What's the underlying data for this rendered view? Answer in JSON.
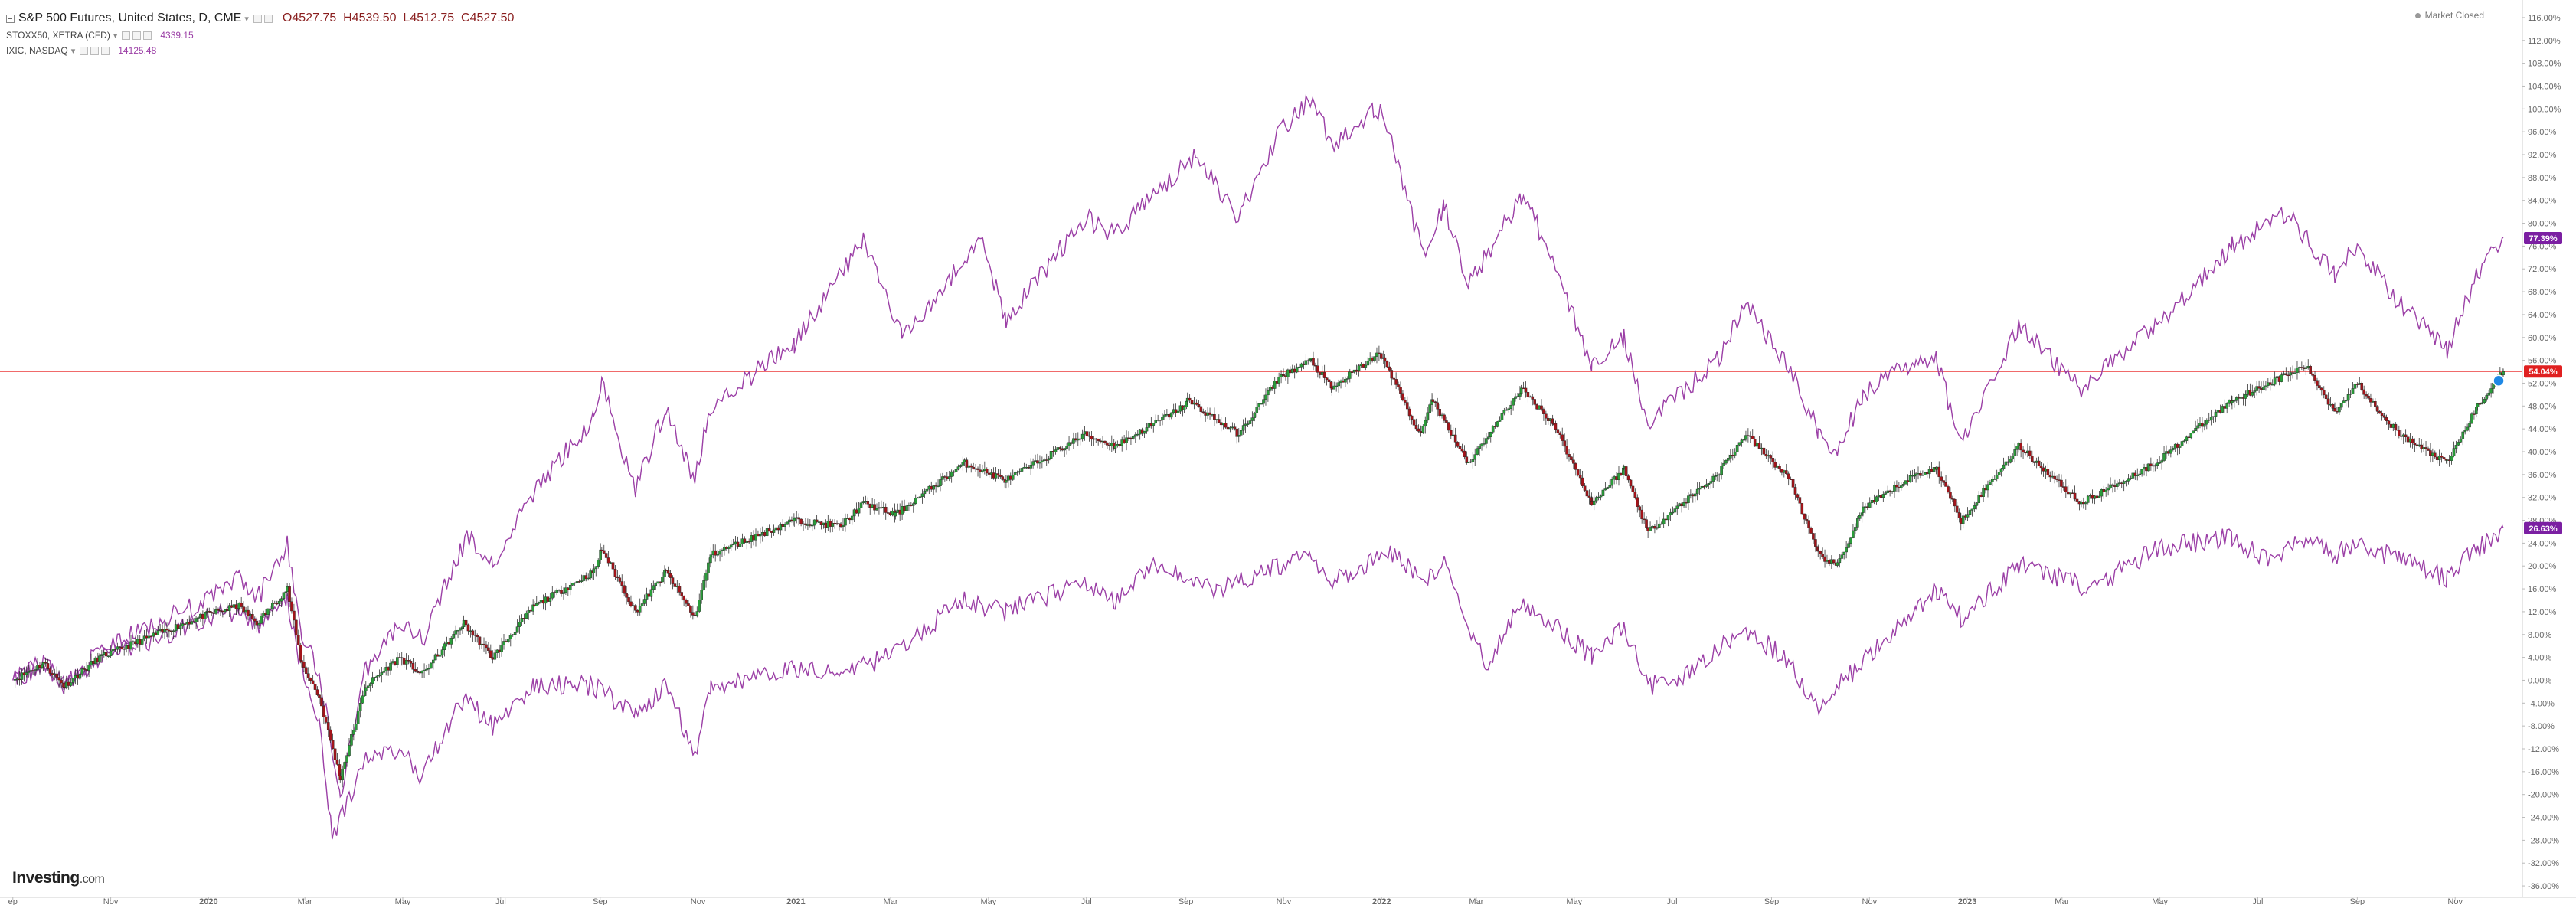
{
  "header": {
    "main_symbol": "S&P 500 Futures, United States, D, CME",
    "open_label": "O",
    "open_value": "4527.75",
    "high_label": "H",
    "high_value": "4539.50",
    "low_label": "L",
    "low_value": "4512.75",
    "close_label": "C",
    "close_value": "4527.50",
    "compare1_symbol": "STOXX50, XETRA (CFD)",
    "compare1_value": "4339.15",
    "compare2_symbol": "IXIC, NASDAQ",
    "compare2_value": "14125.48",
    "market_status": "Market Closed",
    "caret_icon": "chevron-down-icon"
  },
  "brand": {
    "name": "Investing",
    "suffix": ".com"
  },
  "colors": {
    "background": "#ffffff",
    "candle_up": "#2a9d3a",
    "candle_down": "#a3141a",
    "compare_line": "#9b3fa6",
    "last_price_line": "#f06a6a",
    "badge_red": "#e02020",
    "badge_purple": "#7b1fa2",
    "grid": "#eeeeee",
    "axis_text": "#666666"
  },
  "chart_data": {
    "type": "line",
    "title": "S&P 500 Futures, United States, D, CME",
    "ylabel": "",
    "ylim": [
      -38,
      118
    ],
    "y_scale": "percent change",
    "y_ticks": [
      "116.00%",
      "112.00%",
      "108.00%",
      "104.00%",
      "100.00%",
      "96.00%",
      "92.00%",
      "88.00%",
      "84.00%",
      "80.00%",
      "76.00%",
      "72.00%",
      "68.00%",
      "64.00%",
      "60.00%",
      "56.00%",
      "52.00%",
      "48.00%",
      "44.00%",
      "40.00%",
      "36.00%",
      "32.00%",
      "28.00%",
      "24.00%",
      "20.00%",
      "16.00%",
      "12.00%",
      "8.00%",
      "4.00%",
      "0.00%",
      "-4.00%",
      "-8.00%",
      "-12.00%",
      "-16.00%",
      "-20.00%",
      "-24.00%",
      "-28.00%",
      "-32.00%",
      "-36.00%"
    ],
    "x_ticks": [
      {
        "date": "2019-09-01",
        "label": "ep"
      },
      {
        "date": "2019-11-01",
        "label": "Nov"
      },
      {
        "date": "2020-01-01",
        "label": "2020"
      },
      {
        "date": "2020-03-01",
        "label": "Mar"
      },
      {
        "date": "2020-05-01",
        "label": "May"
      },
      {
        "date": "2020-07-01",
        "label": "Jul"
      },
      {
        "date": "2020-09-01",
        "label": "Sep"
      },
      {
        "date": "2020-11-01",
        "label": "Nov"
      },
      {
        "date": "2021-01-01",
        "label": "2021"
      },
      {
        "date": "2021-03-01",
        "label": "Mar"
      },
      {
        "date": "2021-05-01",
        "label": "May"
      },
      {
        "date": "2021-07-01",
        "label": "Jul"
      },
      {
        "date": "2021-09-01",
        "label": "Sep"
      },
      {
        "date": "2021-11-01",
        "label": "Nov"
      },
      {
        "date": "2022-01-01",
        "label": "2022"
      },
      {
        "date": "2022-03-01",
        "label": "Mar"
      },
      {
        "date": "2022-05-01",
        "label": "May"
      },
      {
        "date": "2022-07-01",
        "label": "Jul"
      },
      {
        "date": "2022-09-01",
        "label": "Sep"
      },
      {
        "date": "2022-11-01",
        "label": "Nov"
      },
      {
        "date": "2023-01-01",
        "label": "2023"
      },
      {
        "date": "2023-03-01",
        "label": "Mar"
      },
      {
        "date": "2023-05-01",
        "label": "May"
      },
      {
        "date": "2023-07-01",
        "label": "Jul"
      },
      {
        "date": "2023-09-01",
        "label": "Sep"
      },
      {
        "date": "2023-11-01",
        "label": "Nov"
      }
    ],
    "grid": false,
    "legend": "top-left",
    "last_price_line_value": 54.04,
    "series": [
      {
        "name": "S&P 500 Futures, United States, D, CME",
        "style": "candlestick",
        "last_label": "54.04%",
        "points": [
          [
            "2019-09-01",
            0
          ],
          [
            "2019-09-20",
            3
          ],
          [
            "2019-10-03",
            -1
          ],
          [
            "2019-10-25",
            4
          ],
          [
            "2019-11-29",
            8
          ],
          [
            "2019-12-31",
            11.5
          ],
          [
            "2020-01-20",
            13
          ],
          [
            "2020-01-31",
            10
          ],
          [
            "2020-02-19",
            16
          ],
          [
            "2020-02-28",
            3
          ],
          [
            "2020-03-10",
            -3
          ],
          [
            "2020-03-23",
            -17
          ],
          [
            "2020-04-08",
            -1
          ],
          [
            "2020-04-29",
            4
          ],
          [
            "2020-05-13",
            1
          ],
          [
            "2020-06-08",
            10
          ],
          [
            "2020-06-26",
            4
          ],
          [
            "2020-07-22",
            13
          ],
          [
            "2020-08-28",
            19
          ],
          [
            "2020-09-02",
            23
          ],
          [
            "2020-09-23",
            12
          ],
          [
            "2020-10-12",
            19
          ],
          [
            "2020-10-30",
            11
          ],
          [
            "2020-11-09",
            22
          ],
          [
            "2020-12-31",
            28
          ],
          [
            "2021-01-29",
            27
          ],
          [
            "2021-02-12",
            31
          ],
          [
            "2021-03-04",
            29
          ],
          [
            "2021-04-16",
            38
          ],
          [
            "2021-05-12",
            35
          ],
          [
            "2021-06-30",
            43
          ],
          [
            "2021-07-19",
            41
          ],
          [
            "2021-08-31",
            48
          ],
          [
            "2021-09-02",
            49
          ],
          [
            "2021-10-04",
            43
          ],
          [
            "2021-10-29",
            53
          ],
          [
            "2021-11-18",
            56
          ],
          [
            "2021-12-01",
            51
          ],
          [
            "2021-12-29",
            57
          ],
          [
            "2022-01-03",
            56
          ],
          [
            "2022-01-24",
            43
          ],
          [
            "2022-02-02",
            49
          ],
          [
            "2022-02-24",
            38
          ],
          [
            "2022-03-29",
            51
          ],
          [
            "2022-04-18",
            45
          ],
          [
            "2022-05-12",
            31
          ],
          [
            "2022-06-01",
            37
          ],
          [
            "2022-06-16",
            26
          ],
          [
            "2022-07-29",
            36
          ],
          [
            "2022-08-16",
            43
          ],
          [
            "2022-09-13",
            35
          ],
          [
            "2022-09-30",
            22
          ],
          [
            "2022-10-12",
            20
          ],
          [
            "2022-10-28",
            30
          ],
          [
            "2022-11-30",
            36
          ],
          [
            "2022-12-13",
            37
          ],
          [
            "2022-12-28",
            28
          ],
          [
            "2023-02-02",
            41
          ],
          [
            "2023-03-13",
            31
          ],
          [
            "2023-04-28",
            38
          ],
          [
            "2023-06-15",
            49
          ],
          [
            "2023-07-31",
            55
          ],
          [
            "2023-08-18",
            47
          ],
          [
            "2023-09-01",
            52
          ],
          [
            "2023-09-27",
            43
          ],
          [
            "2023-10-27",
            38
          ],
          [
            "2023-11-15",
            48
          ],
          [
            "2023-12-01",
            54.04
          ]
        ]
      },
      {
        "name": "IXIC, NASDAQ",
        "style": "line",
        "last_label": "77.39%",
        "points": [
          [
            "2019-09-01",
            0
          ],
          [
            "2019-09-20",
            3
          ],
          [
            "2019-10-03",
            -1
          ],
          [
            "2019-10-25",
            5
          ],
          [
            "2019-11-29",
            10
          ],
          [
            "2019-12-31",
            14
          ],
          [
            "2020-01-20",
            18
          ],
          [
            "2020-01-31",
            14
          ],
          [
            "2020-02-19",
            24
          ],
          [
            "2020-02-28",
            8
          ],
          [
            "2020-03-10",
            1
          ],
          [
            "2020-03-23",
            -20
          ],
          [
            "2020-04-08",
            2
          ],
          [
            "2020-04-29",
            10
          ],
          [
            "2020-05-13",
            7
          ],
          [
            "2020-06-10",
            25
          ],
          [
            "2020-06-26",
            20
          ],
          [
            "2020-07-22",
            33
          ],
          [
            "2020-08-28",
            46
          ],
          [
            "2020-09-02",
            52
          ],
          [
            "2020-09-23",
            33
          ],
          [
            "2020-10-12",
            48
          ],
          [
            "2020-10-30",
            35
          ],
          [
            "2020-11-09",
            48
          ],
          [
            "2020-12-31",
            59
          ],
          [
            "2021-02-12",
            77
          ],
          [
            "2021-03-08",
            60
          ],
          [
            "2021-04-26",
            77
          ],
          [
            "2021-05-12",
            63
          ],
          [
            "2021-06-30",
            81
          ],
          [
            "2021-07-19",
            78
          ],
          [
            "2021-09-07",
            92
          ],
          [
            "2021-10-04",
            81
          ],
          [
            "2021-10-29",
            96
          ],
          [
            "2021-11-19",
            102
          ],
          [
            "2021-12-01",
            93
          ],
          [
            "2021-12-27",
            100
          ],
          [
            "2022-01-03",
            99
          ],
          [
            "2022-01-27",
            74
          ],
          [
            "2022-02-09",
            83
          ],
          [
            "2022-02-24",
            69
          ],
          [
            "2022-03-29",
            85
          ],
          [
            "2022-04-18",
            74
          ],
          [
            "2022-05-12",
            55
          ],
          [
            "2022-06-01",
            60
          ],
          [
            "2022-06-16",
            45
          ],
          [
            "2022-07-29",
            56
          ],
          [
            "2022-08-16",
            66
          ],
          [
            "2022-09-13",
            54
          ],
          [
            "2022-09-30",
            44
          ],
          [
            "2022-10-12",
            40
          ],
          [
            "2022-10-28",
            50
          ],
          [
            "2022-11-30",
            56
          ],
          [
            "2022-12-13",
            56
          ],
          [
            "2022-12-28",
            41
          ],
          [
            "2023-02-02",
            62
          ],
          [
            "2023-03-13",
            51
          ],
          [
            "2023-04-28",
            62
          ],
          [
            "2023-06-15",
            76
          ],
          [
            "2023-07-19",
            82
          ],
          [
            "2023-08-18",
            71
          ],
          [
            "2023-09-01",
            76
          ],
          [
            "2023-09-27",
            66
          ],
          [
            "2023-10-27",
            58
          ],
          [
            "2023-11-15",
            71
          ],
          [
            "2023-12-01",
            77.39
          ]
        ]
      },
      {
        "name": "STOXX50, XETRA (CFD)",
        "style": "line",
        "last_label": "26.63%",
        "points": [
          [
            "2019-09-01",
            0
          ],
          [
            "2019-09-20",
            3
          ],
          [
            "2019-10-03",
            -1
          ],
          [
            "2019-10-25",
            4
          ],
          [
            "2019-11-29",
            7
          ],
          [
            "2019-12-31",
            11
          ],
          [
            "2020-01-20",
            12
          ],
          [
            "2020-01-31",
            9
          ],
          [
            "2020-02-19",
            14
          ],
          [
            "2020-02-28",
            2
          ],
          [
            "2020-03-10",
            -8
          ],
          [
            "2020-03-18",
            -28
          ],
          [
            "2020-03-23",
            -24
          ],
          [
            "2020-04-08",
            -14
          ],
          [
            "2020-04-29",
            -12
          ],
          [
            "2020-05-13",
            -17
          ],
          [
            "2020-06-08",
            -3
          ],
          [
            "2020-06-26",
            -8
          ],
          [
            "2020-07-22",
            -1
          ],
          [
            "2020-08-28",
            -1
          ],
          [
            "2020-09-23",
            -6
          ],
          [
            "2020-10-12",
            -1
          ],
          [
            "2020-10-30",
            -13
          ],
          [
            "2020-11-09",
            -1
          ],
          [
            "2020-12-31",
            2
          ],
          [
            "2021-01-29",
            1
          ],
          [
            "2021-02-26",
            4
          ],
          [
            "2021-04-16",
            14
          ],
          [
            "2021-05-12",
            12
          ],
          [
            "2021-06-30",
            17
          ],
          [
            "2021-07-19",
            14
          ],
          [
            "2021-08-13",
            20
          ],
          [
            "2021-09-20",
            16
          ],
          [
            "2021-10-29",
            20
          ],
          [
            "2021-11-17",
            23
          ],
          [
            "2021-11-30",
            17
          ],
          [
            "2021-12-29",
            21
          ],
          [
            "2022-01-05",
            23
          ],
          [
            "2022-01-27",
            17
          ],
          [
            "2022-02-09",
            21
          ],
          [
            "2022-03-07",
            2
          ],
          [
            "2022-03-29",
            14
          ],
          [
            "2022-04-18",
            10
          ],
          [
            "2022-05-12",
            4
          ],
          [
            "2022-06-01",
            9
          ],
          [
            "2022-06-16",
            -1
          ],
          [
            "2022-07-05",
            0
          ],
          [
            "2022-08-16",
            9
          ],
          [
            "2022-09-13",
            3
          ],
          [
            "2022-09-29",
            -5
          ],
          [
            "2022-10-20",
            1
          ],
          [
            "2022-11-30",
            12
          ],
          [
            "2022-12-13",
            16
          ],
          [
            "2022-12-28",
            11
          ],
          [
            "2023-02-02",
            20
          ],
          [
            "2023-03-20",
            16
          ],
          [
            "2023-04-28",
            23
          ],
          [
            "2023-06-15",
            25
          ],
          [
            "2023-07-06",
            21
          ],
          [
            "2023-07-31",
            25
          ],
          [
            "2023-08-18",
            22
          ],
          [
            "2023-09-01",
            24
          ],
          [
            "2023-09-27",
            21
          ],
          [
            "2023-10-27",
            18
          ],
          [
            "2023-11-15",
            23
          ],
          [
            "2023-12-01",
            26.63
          ]
        ]
      }
    ]
  }
}
